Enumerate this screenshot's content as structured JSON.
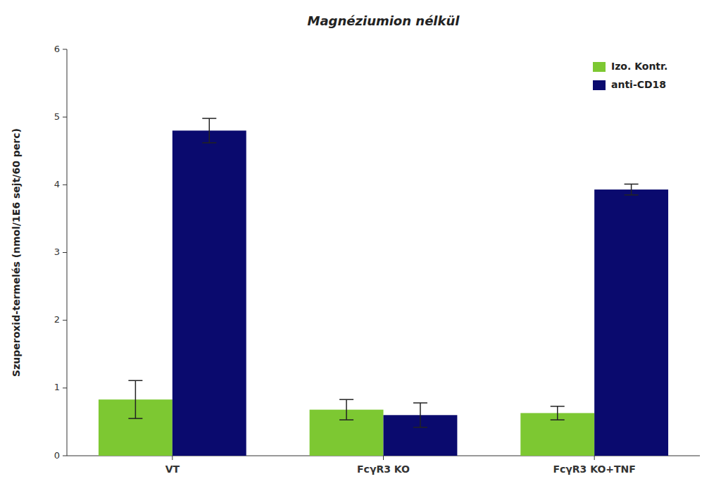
{
  "chart_data": {
    "type": "bar",
    "title": "Magnéziumion nélkül",
    "ylabel": "Szuperoxid-termelés (nmol/1E6 sejt/60 perc)",
    "categories": [
      "VT",
      "FcγR3 KO",
      "FcγR3 KO+TNF"
    ],
    "series": [
      {
        "name": "Izo. Kontr.",
        "color": "#7dc832",
        "values": [
          0.83,
          0.68,
          0.63
        ],
        "errors": [
          0.28,
          0.15,
          0.1
        ]
      },
      {
        "name": "anti-CD18",
        "color": "#0a0a6e",
        "values": [
          4.8,
          0.6,
          3.93
        ],
        "errors": [
          0.18,
          0.18,
          0.08
        ]
      }
    ],
    "ylim": [
      0,
      6
    ],
    "yticks": [
      0,
      1,
      2,
      3,
      4,
      5,
      6
    ],
    "grid": false,
    "legend": "upper right"
  }
}
